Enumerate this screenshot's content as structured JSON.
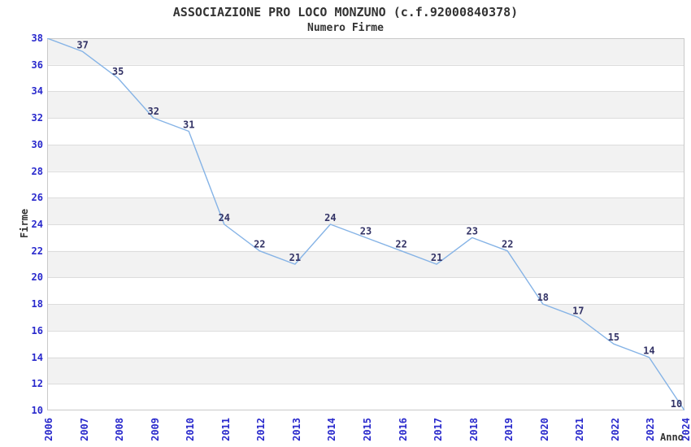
{
  "chart_data": {
    "type": "line",
    "title": "ASSOCIAZIONE PRO LOCO MONZUNO (c.f.92000840378)",
    "subtitle": "Numero Firme",
    "xlabel": "Anno",
    "ylabel": "Firme",
    "x": [
      2006,
      2007,
      2008,
      2009,
      2010,
      2011,
      2012,
      2013,
      2014,
      2015,
      2016,
      2017,
      2018,
      2019,
      2020,
      2021,
      2022,
      2023,
      2024
    ],
    "values": [
      38,
      37,
      35,
      32,
      31,
      24,
      22,
      21,
      24,
      23,
      22,
      21,
      23,
      22,
      18,
      17,
      15,
      14,
      10
    ],
    "ylim": [
      10,
      38
    ],
    "yticks": [
      10,
      12,
      14,
      16,
      18,
      20,
      22,
      24,
      26,
      28,
      30,
      32,
      34,
      36,
      38
    ],
    "grid": true,
    "legend": "none",
    "band_pattern": "alternating-2-unit-horizontal-stripes",
    "point_labels_visible": true,
    "colors": {
      "line": "#85B3E6",
      "axis_tick_label": "#2929CC",
      "point_label": "#333366",
      "title": "#333333",
      "axis_title": "#333333",
      "band": "#F2F2F2",
      "gridline": "#DCDCDC",
      "plot_border": "#C9C9C9",
      "background": "#FFFFFF"
    }
  }
}
